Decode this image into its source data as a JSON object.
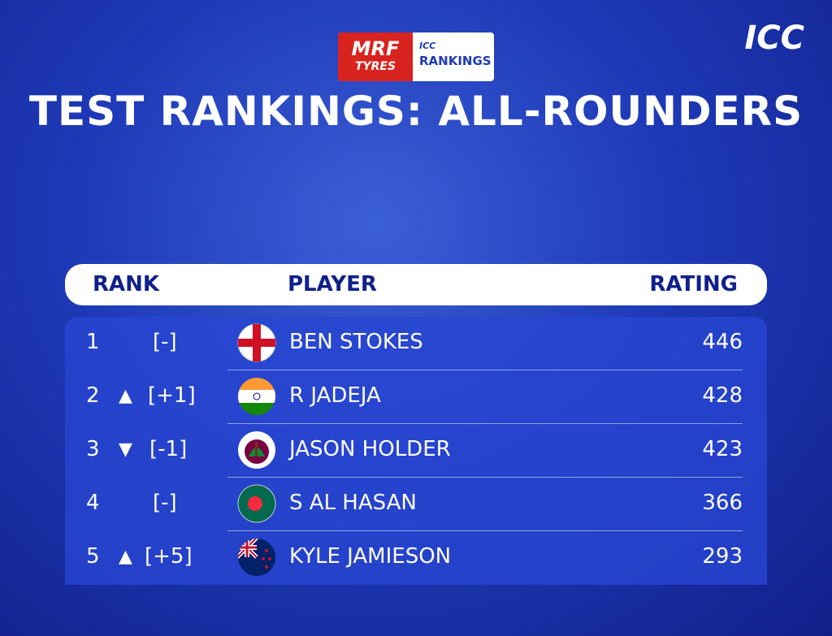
{
  "logo": {
    "sponsor_line1": "MRF",
    "sponsor_line2": "TYRES",
    "series_small": "ICC",
    "series_name": "RANKINGS",
    "brand": "ICC"
  },
  "title": "TEST RANKINGS: ALL-ROUNDERS",
  "table": {
    "headers": [
      "RANK",
      "PLAYER",
      "RATING"
    ],
    "rows": [
      {
        "rank": "1",
        "movement": "[-]",
        "player": "BEN STOKES",
        "rating": "446"
      },
      {
        "rank": "2",
        "arrow": "▲",
        "movement": "[+1]",
        "player": "R JADEJA",
        "rating": "428"
      },
      {
        "rank": "3",
        "arrow": "▼",
        "movement": "[-1]",
        "player": "JASON HOLDER",
        "rating": "423"
      },
      {
        "rank": "4",
        "movement": "[-]",
        "player": "S AL HASAN",
        "rating": "366"
      },
      {
        "rank": "5",
        "arrow": "▲",
        "movement": "[+5]",
        "player": "KYLE JAMIESON",
        "rating": "293"
      }
    ]
  }
}
